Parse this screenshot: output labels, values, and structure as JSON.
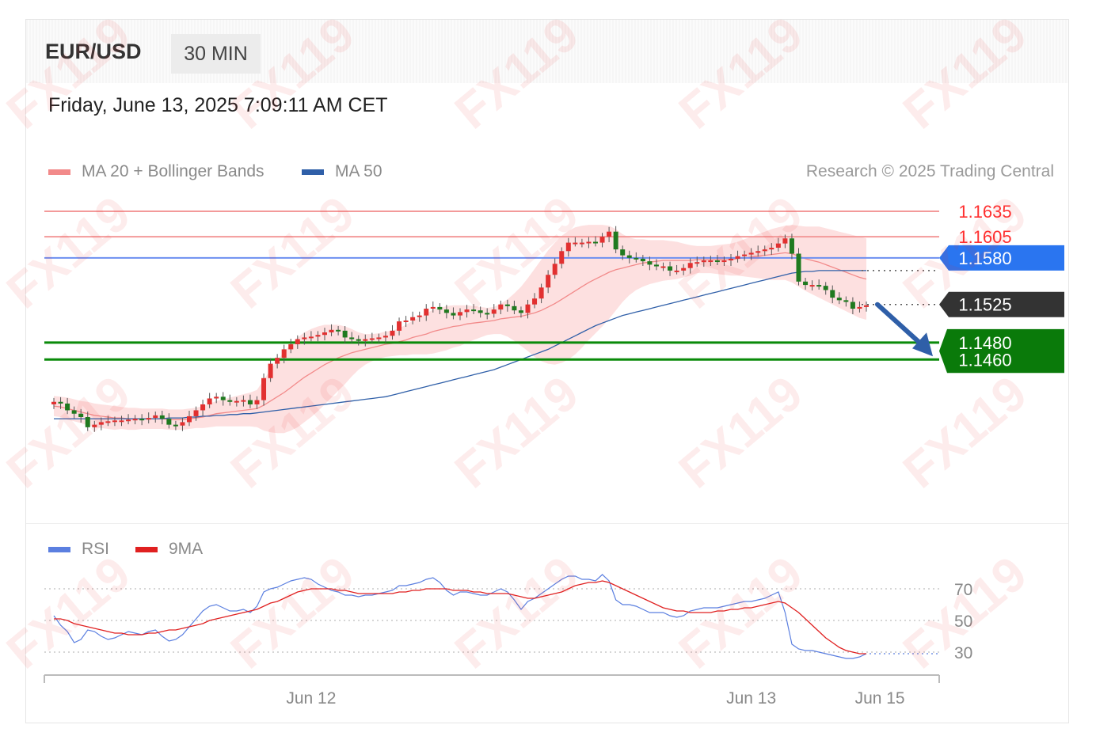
{
  "header": {
    "symbol": "EUR/USD",
    "timeframe": "30 MIN",
    "datetime": "Friday, June 13, 2025 7:09:11 AM CET"
  },
  "legend": {
    "ma20_label": "MA 20 + Bollinger Bands",
    "ma20_color": "#f28a8a",
    "ma50_label": "MA 50",
    "ma50_color": "#2f5fa8",
    "credit": "Research © 2025 Trading Central"
  },
  "rsi_legend": {
    "rsi_label": "RSI",
    "rsi_color": "#5b7fe0",
    "ma9_label": "9MA",
    "ma9_color": "#e02020"
  },
  "watermark_text": "FX119",
  "chart_data": {
    "type": "candlestick",
    "price_axis_range": [
      1.1385,
      1.165
    ],
    "levels": [
      {
        "value": "1.1635",
        "style": "resistance",
        "color": "#ff3030",
        "label_type": "text"
      },
      {
        "value": "1.1605",
        "style": "resistance",
        "color": "#ff3030",
        "label_type": "text"
      },
      {
        "value": "1.1580",
        "style": "pivot",
        "color": "#2a75f0",
        "label_type": "badge"
      },
      {
        "value": "1.1525",
        "style": "last",
        "color": "#333333",
        "label_type": "badge"
      },
      {
        "value": "1.1480",
        "style": "target",
        "color": "#0a8a0a",
        "label_type": "badge"
      },
      {
        "value": "1.1460",
        "style": "target",
        "color": "#0a8a0a",
        "label_type": "badge"
      }
    ],
    "close": [
      1.141,
      1.1408,
      1.14,
      1.1396,
      1.1392,
      1.138,
      1.1383,
      1.1386,
      1.1387,
      1.1388,
      1.1388,
      1.1389,
      1.139,
      1.1389,
      1.1391,
      1.1394,
      1.139,
      1.1383,
      1.1382,
      1.1386,
      1.1393,
      1.14,
      1.1407,
      1.1414,
      1.1416,
      1.1412,
      1.141,
      1.1411,
      1.1412,
      1.1407,
      1.1412,
      1.1438,
      1.1455,
      1.1462,
      1.1472,
      1.1478,
      1.1484,
      1.1486,
      1.1487,
      1.1489,
      1.1492,
      1.1495,
      1.1494,
      1.1486,
      1.1484,
      1.1482,
      1.1484,
      1.1485,
      1.1486,
      1.1488,
      1.1494,
      1.1505,
      1.1506,
      1.151,
      1.1512,
      1.152,
      1.1522,
      1.1519,
      1.1515,
      1.1512,
      1.1516,
      1.1519,
      1.1518,
      1.1515,
      1.1514,
      1.1519,
      1.1525,
      1.1523,
      1.1518,
      1.1515,
      1.1525,
      1.1532,
      1.1545,
      1.156,
      1.1573,
      1.1588,
      1.1598,
      1.1598,
      1.1598,
      1.1599,
      1.1598,
      1.1605,
      1.1611,
      1.159,
      1.1583,
      1.158,
      1.1579,
      1.1576,
      1.1572,
      1.157,
      1.157,
      1.1565,
      1.1565,
      1.1568,
      1.1574,
      1.1575,
      1.1577,
      1.1577,
      1.1576,
      1.1577,
      1.1579,
      1.1582,
      1.1584,
      1.1586,
      1.1588,
      1.159,
      1.1592,
      1.1597,
      1.1603,
      1.1585,
      1.1552,
      1.1548,
      1.1548,
      1.1547,
      1.1542,
      1.1533,
      1.153,
      1.1528,
      1.152,
      1.1522,
      1.1524
    ],
    "ma20": [
      1.1405,
      1.1404,
      1.1402,
      1.14,
      1.1398,
      1.1396,
      1.1394,
      1.1393,
      1.1392,
      1.1391,
      1.1391,
      1.139,
      1.139,
      1.139,
      1.139,
      1.139,
      1.139,
      1.1389,
      1.1389,
      1.1389,
      1.139,
      1.1391,
      1.1392,
      1.1394,
      1.1396,
      1.1397,
      1.1398,
      1.1399,
      1.14,
      1.1401,
      1.1402,
      1.1406,
      1.1411,
      1.1416,
      1.1421,
      1.1427,
      1.1433,
      1.1439,
      1.1444,
      1.1449,
      1.1454,
      1.1458,
      1.1462,
      1.1465,
      1.1468,
      1.147,
      1.1472,
      1.1474,
      1.1476,
      1.1478,
      1.1479,
      1.1481,
      1.1483,
      1.1486,
      1.1488,
      1.149,
      1.1493,
      1.1495,
      1.1497,
      1.1499,
      1.15,
      1.1502,
      1.1503,
      1.1504,
      1.1505,
      1.1506,
      1.1508,
      1.1509,
      1.151,
      1.1511,
      1.1513,
      1.1515,
      1.1518,
      1.1522,
      1.1526,
      1.1531,
      1.1536,
      1.1541,
      1.1546,
      1.1551,
      1.1555,
      1.1559,
      1.1563,
      1.1566,
      1.1568,
      1.157,
      1.1572,
      1.1574,
      1.1575,
      1.1576,
      1.1577,
      1.1577,
      1.1577,
      1.1577,
      1.1577,
      1.1578,
      1.1578,
      1.1578,
      1.1578,
      1.1578,
      1.1578,
      1.1579,
      1.158,
      1.1581,
      1.1582,
      1.1583,
      1.1584,
      1.1585,
      1.1586,
      1.1585,
      1.1582,
      1.1579,
      1.1577,
      1.1575,
      1.1572,
      1.1569,
      1.1566,
      1.1563,
      1.156,
      1.1557,
      1.1555
    ],
    "ma50": [
      1.139,
      1.139,
      1.139,
      1.139,
      1.139,
      1.139,
      1.139,
      1.139,
      1.139,
      1.139,
      1.139,
      1.139,
      1.139,
      1.139,
      1.139,
      1.139,
      1.139,
      1.1391,
      1.1391,
      1.1391,
      1.1392,
      1.1392,
      1.1393,
      1.1393,
      1.1394,
      1.1394,
      1.1395,
      1.1395,
      1.1396,
      1.1396,
      1.1397,
      1.1398,
      1.1399,
      1.14,
      1.1401,
      1.1402,
      1.1403,
      1.1404,
      1.1405,
      1.1406,
      1.1407,
      1.1408,
      1.1409,
      1.141,
      1.1411,
      1.1412,
      1.1413,
      1.1414,
      1.1415,
      1.1416,
      1.1418,
      1.142,
      1.1422,
      1.1424,
      1.1426,
      1.1428,
      1.143,
      1.1432,
      1.1434,
      1.1436,
      1.1438,
      1.144,
      1.1442,
      1.1444,
      1.1446,
      1.1448,
      1.1451,
      1.1454,
      1.1457,
      1.146,
      1.1463,
      1.1466,
      1.1469,
      1.1472,
      1.1476,
      1.148,
      1.1484,
      1.1488,
      1.1492,
      1.1496,
      1.15,
      1.1503,
      1.1506,
      1.1509,
      1.1512,
      1.1514,
      1.1516,
      1.1518,
      1.152,
      1.1522,
      1.1524,
      1.1526,
      1.1528,
      1.153,
      1.1532,
      1.1534,
      1.1536,
      1.1538,
      1.154,
      1.1542,
      1.1544,
      1.1546,
      1.1548,
      1.155,
      1.1552,
      1.1554,
      1.1556,
      1.1558,
      1.156,
      1.1562,
      1.1563,
      1.1564,
      1.1564,
      1.1565,
      1.1565,
      1.1565,
      1.1565,
      1.1565,
      1.1565,
      1.1565,
      1.1565
    ],
    "band_width": [
      0.0012,
      0.0012,
      0.0013,
      0.0013,
      0.0013,
      0.0014,
      0.0014,
      0.0014,
      0.0014,
      0.0014,
      0.0013,
      0.0013,
      0.0013,
      0.0012,
      0.0012,
      0.0012,
      0.0012,
      0.0012,
      0.0012,
      0.0012,
      0.0012,
      0.0012,
      0.0013,
      0.0014,
      0.0015,
      0.0016,
      0.0017,
      0.0018,
      0.0019,
      0.002,
      0.0022,
      0.003,
      0.0037,
      0.0043,
      0.0048,
      0.0051,
      0.0053,
      0.0053,
      0.0052,
      0.005,
      0.0047,
      0.0043,
      0.0039,
      0.0034,
      0.0028,
      0.0022,
      0.0018,
      0.0016,
      0.0015,
      0.0015,
      0.0015,
      0.0016,
      0.0018,
      0.002,
      0.0022,
      0.0024,
      0.0026,
      0.0026,
      0.0026,
      0.0025,
      0.0024,
      0.0022,
      0.002,
      0.0018,
      0.0016,
      0.0016,
      0.0018,
      0.0022,
      0.0028,
      0.0035,
      0.0043,
      0.0052,
      0.006,
      0.0067,
      0.0072,
      0.0075,
      0.0076,
      0.0075,
      0.0072,
      0.0068,
      0.0064,
      0.006,
      0.0055,
      0.0048,
      0.004,
      0.0034,
      0.003,
      0.0028,
      0.0026,
      0.0025,
      0.0024,
      0.0023,
      0.0022,
      0.002,
      0.0018,
      0.0016,
      0.0016,
      0.0016,
      0.0017,
      0.0018,
      0.0019,
      0.002,
      0.0022,
      0.0024,
      0.0026,
      0.0028,
      0.003,
      0.0031,
      0.0032,
      0.0034,
      0.0036,
      0.0038,
      0.004,
      0.0042,
      0.0043,
      0.0044,
      0.0045,
      0.0046,
      0.0047,
      0.0048,
      0.0048,
      0.0048,
      0.0048
    ],
    "forecast_arrow": {
      "from": 1.1525,
      "to": 1.146
    },
    "rsi": {
      "axis_range": [
        20,
        80
      ],
      "levels": [
        "70",
        "50",
        "30"
      ],
      "rsi_values": [
        53,
        47,
        43,
        36,
        38,
        44,
        43,
        40,
        38,
        39,
        41,
        43,
        42,
        41,
        43,
        44,
        40,
        37,
        38,
        41,
        46,
        51,
        56,
        59,
        60,
        58,
        56,
        56,
        57,
        55,
        59,
        68,
        70,
        71,
        73,
        75,
        76,
        77,
        76,
        73,
        71,
        69,
        68,
        66,
        66,
        65,
        66,
        66,
        67,
        68,
        69,
        72,
        72,
        73,
        74,
        76,
        77,
        74,
        69,
        66,
        68,
        68,
        67,
        66,
        66,
        68,
        70,
        68,
        63,
        57,
        62,
        64,
        67,
        70,
        73,
        76,
        78,
        78,
        76,
        76,
        75,
        79,
        75,
        63,
        60,
        60,
        59,
        57,
        55,
        55,
        55,
        53,
        52,
        53,
        56,
        57,
        58,
        58,
        58,
        59,
        60,
        61,
        62,
        62,
        63,
        64,
        66,
        68,
        55,
        35,
        32,
        31,
        31,
        30,
        29,
        28,
        27,
        26,
        26,
        27,
        29
      ],
      "ma9_values": [
        51,
        51,
        50,
        48,
        47,
        46,
        45,
        44,
        43,
        42,
        42,
        41,
        41,
        41,
        42,
        42,
        43,
        44,
        44,
        45,
        46,
        47,
        48,
        50,
        51,
        52,
        53,
        54,
        55,
        56,
        57,
        59,
        61,
        62,
        64,
        66,
        68,
        69,
        70,
        70,
        70,
        70,
        69,
        69,
        68,
        67,
        67,
        67,
        67,
        67,
        67,
        68,
        68,
        69,
        69,
        70,
        70,
        70,
        70,
        69,
        69,
        69,
        68,
        68,
        67,
        67,
        67,
        67,
        66,
        65,
        64,
        64,
        65,
        66,
        67,
        68,
        70,
        72,
        73,
        74,
        74,
        75,
        74,
        72,
        70,
        68,
        66,
        64,
        62,
        60,
        58,
        57,
        56,
        56,
        55,
        55,
        55,
        55,
        56,
        56,
        57,
        57,
        58,
        58,
        59,
        60,
        61,
        62,
        61,
        58,
        55,
        51,
        47,
        43,
        39,
        36,
        33,
        31,
        30,
        29,
        29
      ]
    },
    "x_axis": {
      "ticks": [
        {
          "label": "Jun 12",
          "index": 38
        },
        {
          "label": "Jun 13",
          "index": 103
        },
        {
          "label": "Jun 15",
          "index": 122
        }
      ]
    }
  }
}
